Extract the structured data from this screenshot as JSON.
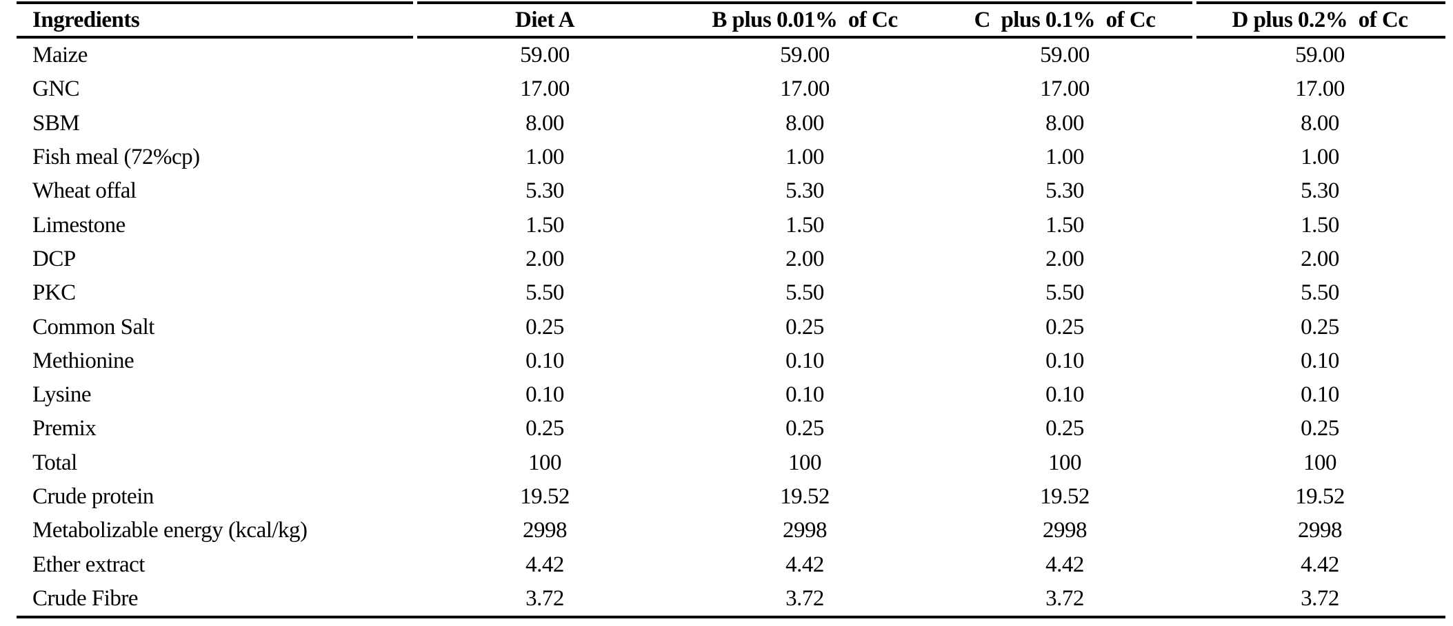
{
  "colors": {
    "text": "#000000",
    "rule": "#000000",
    "background": "#ffffff"
  },
  "table": {
    "columns": [
      {
        "label": "Ingredients",
        "align": "left"
      },
      {
        "label": "Diet A",
        "align": "center"
      },
      {
        "label": "B plus 0.01%  of Cc",
        "align": "center"
      },
      {
        "label": "C  plus 0.1%  of Cc",
        "align": "center"
      },
      {
        "label": "D plus 0.2%  of Cc",
        "align": "center"
      }
    ],
    "rows": [
      {
        "label": "Maize",
        "values": [
          "59.00",
          "59.00",
          "59.00",
          "59.00"
        ]
      },
      {
        "label": "GNC",
        "values": [
          "17.00",
          "17.00",
          "17.00",
          "17.00"
        ]
      },
      {
        "label": "SBM",
        "values": [
          "8.00",
          "8.00",
          "8.00",
          "8.00"
        ]
      },
      {
        "label": "Fish meal (72%cp)",
        "values": [
          "1.00",
          "1.00",
          "1.00",
          "1.00"
        ]
      },
      {
        "label": "Wheat offal",
        "values": [
          "5.30",
          "5.30",
          "5.30",
          "5.30"
        ]
      },
      {
        "label": "Limestone",
        "values": [
          "1.50",
          "1.50",
          "1.50",
          "1.50"
        ]
      },
      {
        "label": "DCP",
        "values": [
          "2.00",
          "2.00",
          "2.00",
          "2.00"
        ]
      },
      {
        "label": "PKC",
        "values": [
          "5.50",
          "5.50",
          "5.50",
          "5.50"
        ]
      },
      {
        "label": "Common Salt",
        "values": [
          "0.25",
          "0.25",
          "0.25",
          "0.25"
        ]
      },
      {
        "label": "Methionine",
        "values": [
          "0.10",
          "0.10",
          "0.10",
          "0.10"
        ]
      },
      {
        "label": "Lysine",
        "values": [
          "0.10",
          "0.10",
          "0.10",
          "0.10"
        ]
      },
      {
        "label": "Premix",
        "values": [
          "0.25",
          "0.25",
          "0.25",
          "0.25"
        ]
      },
      {
        "label": "Total",
        "values": [
          "100",
          "100",
          "100",
          "100"
        ]
      },
      {
        "label": "Crude protein",
        "values": [
          "19.52",
          "19.52",
          "19.52",
          "19.52"
        ]
      },
      {
        "label": "Metabolizable energy (kcal/kg)",
        "values": [
          "2998",
          "2998",
          "2998",
          "2998"
        ]
      },
      {
        "label": "Ether extract",
        "values": [
          "4.42",
          "4.42",
          "4.42",
          "4.42"
        ]
      },
      {
        "label": "Crude Fibre",
        "values": [
          "3.72",
          "3.72",
          "3.72",
          "3.72"
        ]
      }
    ]
  }
}
